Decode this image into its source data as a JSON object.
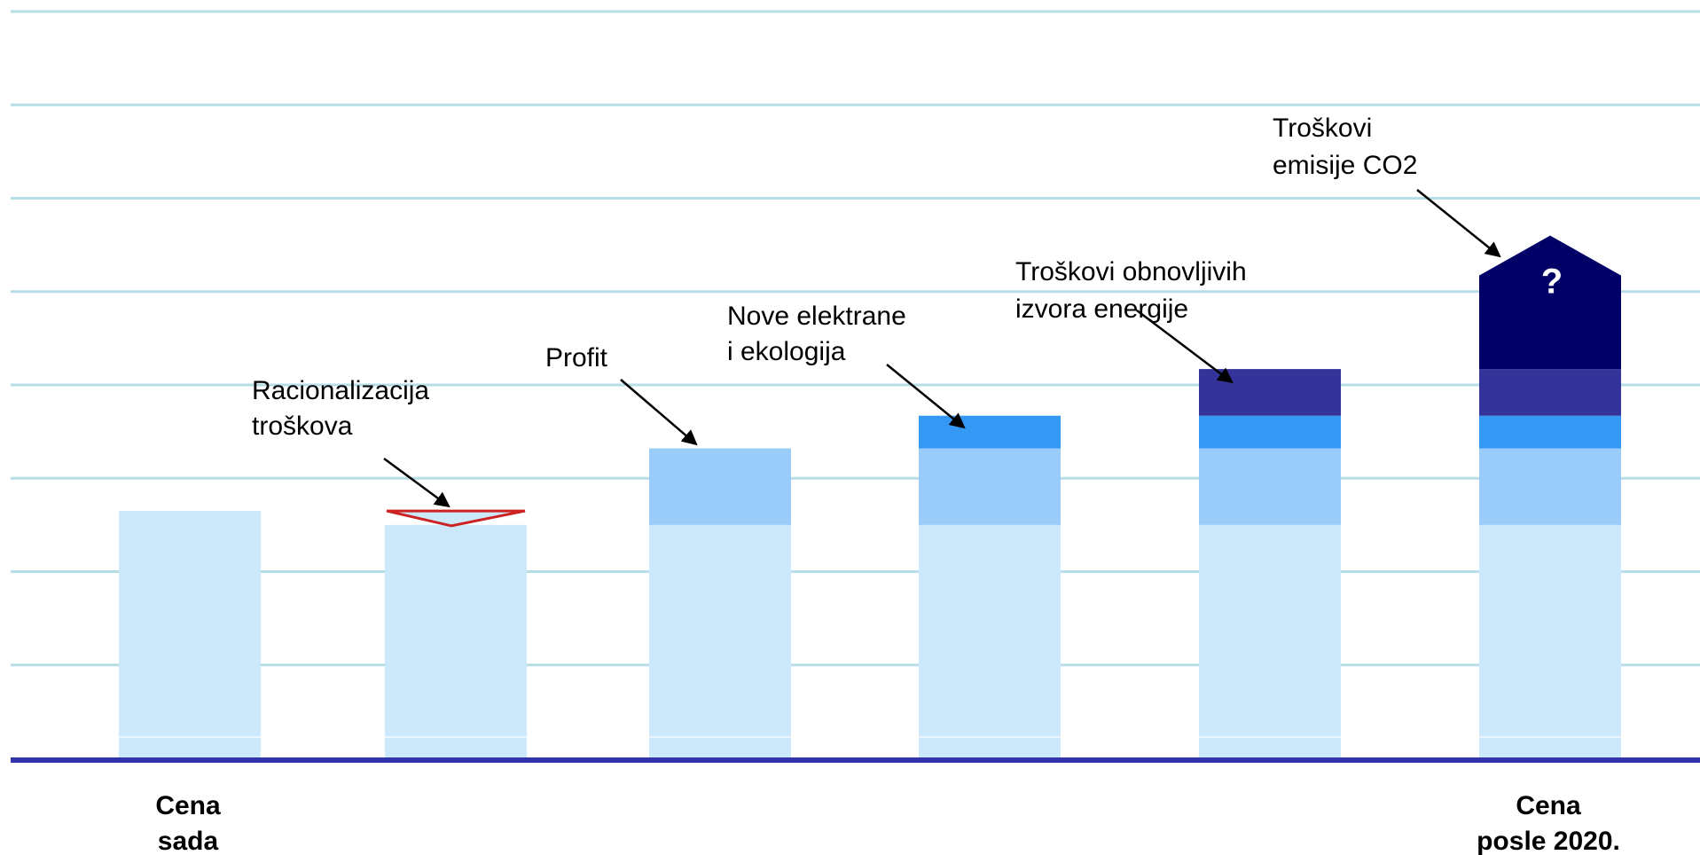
{
  "chart_data": {
    "type": "bar",
    "stacked": true,
    "waterfall": true,
    "grid": true,
    "ylim": [
      0,
      8
    ],
    "categories": [
      {
        "label_lines": [
          "Cena",
          "sada"
        ]
      },
      {
        "label_lines": []
      },
      {
        "label_lines": []
      },
      {
        "label_lines": []
      },
      {
        "label_lines": []
      },
      {
        "label_lines": [
          "Cena",
          "posle 2020."
        ]
      }
    ],
    "segments": [
      {
        "bar": 0,
        "from": 0,
        "to": 2.65,
        "color": "#cce9fb"
      },
      {
        "bar": 1,
        "from": 0,
        "to": 2.5,
        "color": "#cce9fb"
      },
      {
        "bar": 1,
        "from": 2.5,
        "to": 2.65,
        "color": "#cce9fb",
        "shape": "down-triangle",
        "stroke": "#cc2222"
      },
      {
        "bar": 2,
        "from": 0,
        "to": 2.5,
        "color": "#cce9fb"
      },
      {
        "bar": 2,
        "from": 2.5,
        "to": 3.32,
        "color": "#99ccf9"
      },
      {
        "bar": 3,
        "from": 0,
        "to": 2.5,
        "color": "#cce9fb"
      },
      {
        "bar": 3,
        "from": 2.5,
        "to": 3.32,
        "color": "#99ccf9"
      },
      {
        "bar": 3,
        "from": 3.32,
        "to": 3.67,
        "color": "#3399f5"
      },
      {
        "bar": 4,
        "from": 0,
        "to": 2.5,
        "color": "#cce9fb"
      },
      {
        "bar": 4,
        "from": 2.5,
        "to": 3.32,
        "color": "#99ccf9"
      },
      {
        "bar": 4,
        "from": 3.32,
        "to": 3.67,
        "color": "#3399f5"
      },
      {
        "bar": 4,
        "from": 3.67,
        "to": 4.17,
        "color": "#333399"
      },
      {
        "bar": 5,
        "from": 0,
        "to": 2.5,
        "color": "#cce9fb"
      },
      {
        "bar": 5,
        "from": 2.5,
        "to": 3.32,
        "color": "#99ccf9"
      },
      {
        "bar": 5,
        "from": 3.32,
        "to": 3.67,
        "color": "#3399f5"
      },
      {
        "bar": 5,
        "from": 3.67,
        "to": 4.17,
        "color": "#333399"
      },
      {
        "bar": 5,
        "from": 4.17,
        "to": 5.6,
        "color": "#000066",
        "shape": "up-arrow",
        "text": "?"
      }
    ],
    "annotations": [
      {
        "lines": [
          "Racionalizacija",
          "troškova"
        ],
        "bar": 1
      },
      {
        "lines": [
          "Profit"
        ],
        "bar": 2
      },
      {
        "lines": [
          "Nove elektrane",
          "i ekologija"
        ],
        "bar": 3
      },
      {
        "lines": [
          "Troškovi obnovljivih",
          "izvora energije"
        ],
        "bar": 4
      },
      {
        "lines": [
          "Troškovi",
          "emisije CO2"
        ],
        "bar": 5
      }
    ]
  },
  "colors": {
    "gridline": "#b7dde6",
    "axis": "#3333aa",
    "base": "#cce9fb",
    "profit": "#99ccf9",
    "new_plants": "#3399f5",
    "renewables": "#333399",
    "co2": "#000066",
    "reduction_stroke": "#cc2222"
  }
}
